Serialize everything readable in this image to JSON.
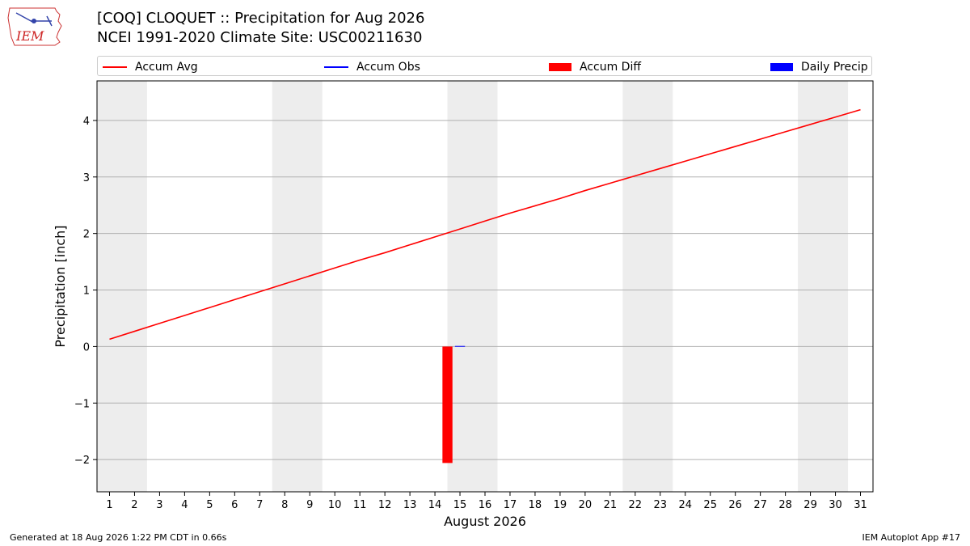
{
  "header": {
    "title_line1": "[COQ] CLOQUET :: Precipitation for Aug 2026",
    "title_line2": "NCEI 1991-2020 Climate Site: USC00211630"
  },
  "logo": {
    "text": "IEM",
    "icon": "iem-iowa-weather-logo"
  },
  "legend": [
    {
      "label": "Accum Avg",
      "kind": "line",
      "color": "#ff0000"
    },
    {
      "label": "Accum Obs",
      "kind": "line",
      "color": "#0000ff"
    },
    {
      "label": "Accum Diff",
      "kind": "patch",
      "color": "#ff0000"
    },
    {
      "label": "Daily Precip",
      "kind": "patch",
      "color": "#0000ff"
    }
  ],
  "footer": {
    "left": "Generated at 18 Aug 2026 1:22 PM CDT in 0.66s",
    "right": "IEM Autoplot App #17"
  },
  "chart_data": {
    "type": "line",
    "title": "[COQ] CLOQUET :: Precipitation for Aug 2026",
    "subtitle": "NCEI 1991-2020 Climate Site: USC00211630",
    "xlabel": "August 2026",
    "ylabel": "Precipitation [inch]",
    "xlim": [
      0.5,
      31.5
    ],
    "ylim": [
      -2.57,
      4.7
    ],
    "x_ticks": [
      1,
      2,
      3,
      4,
      5,
      6,
      7,
      8,
      9,
      10,
      11,
      12,
      13,
      14,
      15,
      16,
      17,
      18,
      19,
      20,
      21,
      22,
      23,
      24,
      25,
      26,
      27,
      28,
      29,
      30,
      31
    ],
    "y_ticks": [
      -2,
      -1,
      0,
      1,
      2,
      3,
      4
    ],
    "grid": "horizontal",
    "legend_position": "top",
    "weekend_shading": [
      [
        1,
        2
      ],
      [
        8,
        9
      ],
      [
        15,
        16
      ],
      [
        22,
        23
      ],
      [
        29,
        30
      ]
    ],
    "series": [
      {
        "name": "Accum Avg",
        "kind": "line",
        "color": "#ff0000",
        "x": [
          1,
          2,
          3,
          4,
          5,
          6,
          7,
          8,
          9,
          10,
          11,
          12,
          13,
          14,
          15,
          16,
          17,
          18,
          19,
          20,
          21,
          22,
          23,
          24,
          25,
          26,
          27,
          28,
          29,
          30,
          31
        ],
        "values": [
          0.13,
          0.27,
          0.41,
          0.55,
          0.69,
          0.83,
          0.97,
          1.11,
          1.25,
          1.39,
          1.53,
          1.66,
          1.8,
          1.94,
          2.08,
          2.22,
          2.36,
          2.49,
          2.62,
          2.76,
          2.89,
          3.02,
          3.15,
          3.28,
          3.41,
          3.54,
          3.67,
          3.8,
          3.93,
          4.06,
          4.19
        ]
      },
      {
        "name": "Accum Diff",
        "kind": "bar",
        "color": "#ff0000",
        "x": [
          14.5
        ],
        "values": [
          -2.06
        ]
      },
      {
        "name": "Daily Precip",
        "kind": "bar",
        "color": "#0000ff",
        "x": [
          15
        ],
        "values": [
          0.01
        ]
      }
    ]
  }
}
